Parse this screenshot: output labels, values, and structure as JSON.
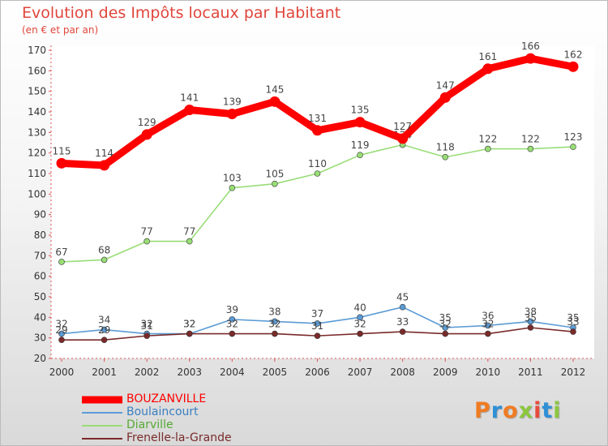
{
  "header": {
    "title": "Evolution des Impôts locaux par Habitant",
    "subtitle": "(en € et par an)"
  },
  "logo": {
    "text": "Proxiti",
    "colors": [
      "#f07b22",
      "#2e8fd6",
      "#f07b22",
      "#8cc63f",
      "#e84b3c",
      "#2e8fd6",
      "#8cc63f"
    ]
  },
  "chart_data": {
    "type": "line",
    "title": "Evolution des Impôts locaux par Habitant",
    "subtitle": "(en € et par an)",
    "xlabel": "",
    "ylabel": "",
    "x": [
      "2000",
      "2001",
      "2002",
      "2003",
      "2004",
      "2005",
      "2006",
      "2007",
      "2008",
      "2009",
      "2010",
      "2011",
      "2012"
    ],
    "ylim": [
      20,
      170
    ],
    "yticks": [
      20,
      30,
      40,
      50,
      60,
      70,
      80,
      90,
      100,
      110,
      120,
      130,
      140,
      150,
      160,
      170
    ],
    "grid": false,
    "legend_position": "bottom-left",
    "series": [
      {
        "name": "BOUZANVILLE",
        "color": "#ff0000",
        "values": [
          115,
          114,
          129,
          141,
          139,
          145,
          131,
          135,
          127,
          147,
          161,
          166,
          162
        ]
      },
      {
        "name": "Boulaincourt",
        "color": "#5b9bd5",
        "values": [
          32,
          34,
          32,
          32,
          39,
          38,
          37,
          40,
          45,
          35,
          36,
          38,
          35
        ]
      },
      {
        "name": "Diarville",
        "color": "#99dd77",
        "values": [
          67,
          68,
          77,
          77,
          103,
          105,
          110,
          119,
          124,
          118,
          122,
          122,
          123
        ]
      },
      {
        "name": "Frenelle-la-Grande",
        "color": "#7a2a2a",
        "values": [
          29,
          29,
          31,
          32,
          32,
          32,
          31,
          32,
          33,
          32,
          32,
          35,
          33
        ]
      }
    ]
  }
}
